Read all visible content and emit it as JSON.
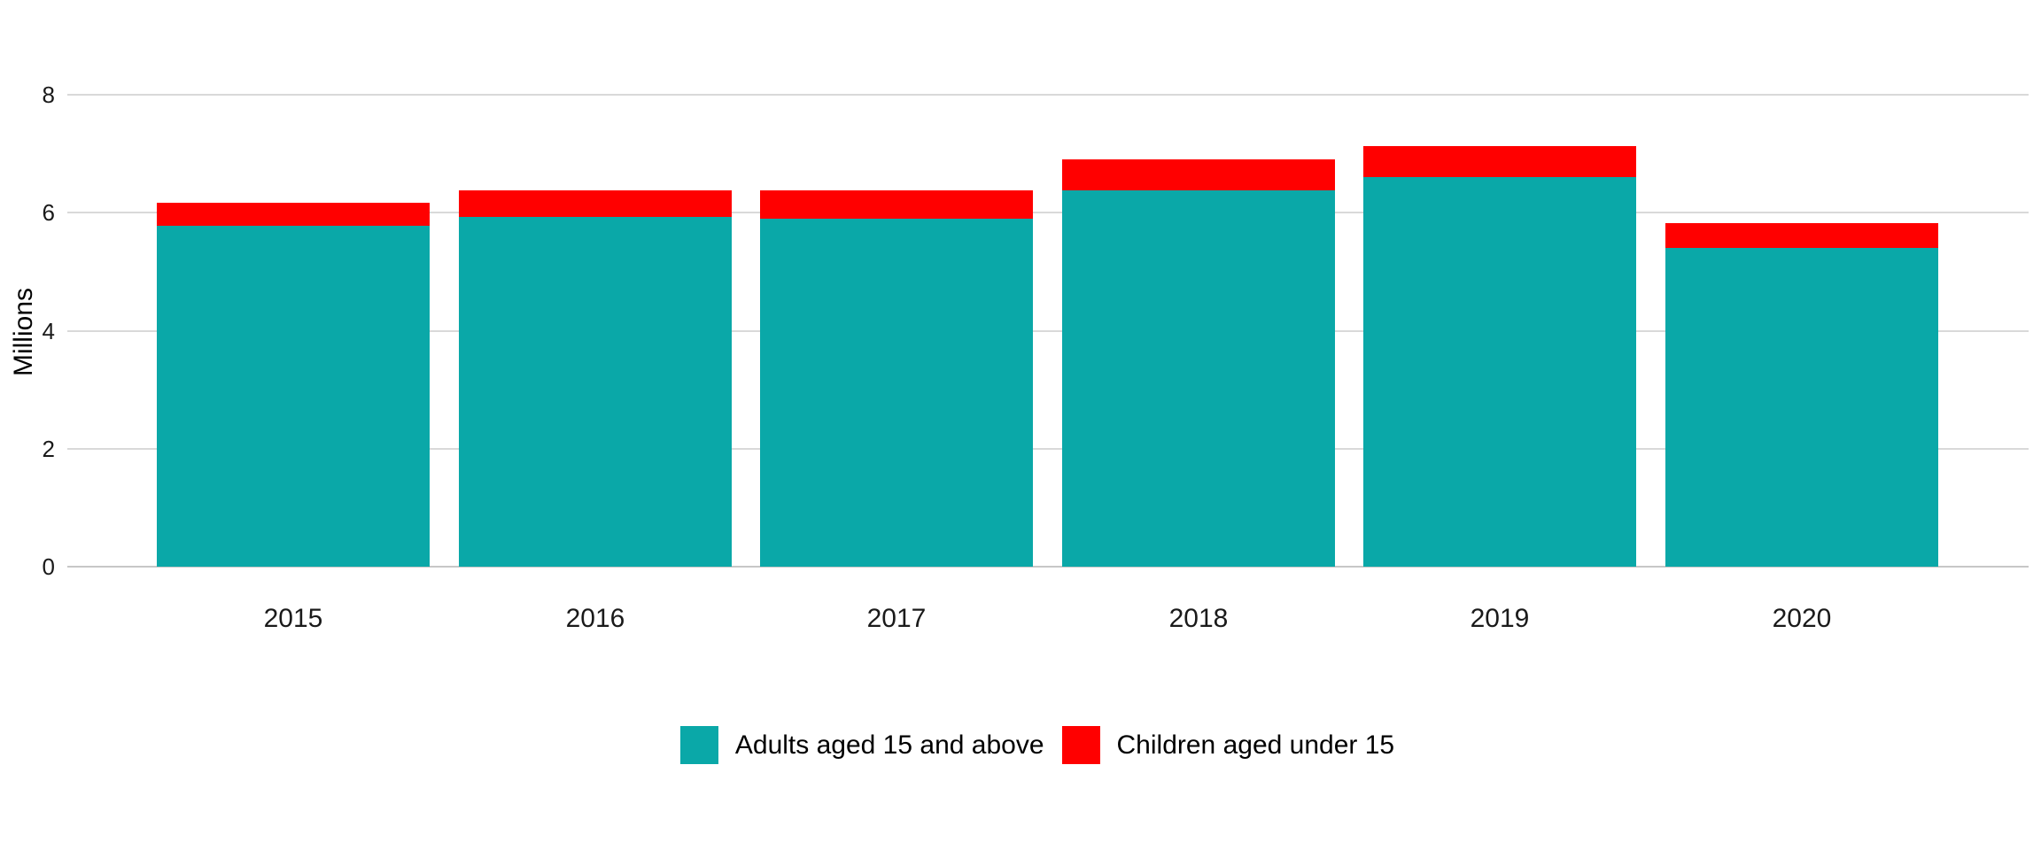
{
  "chart_data": {
    "type": "bar",
    "stacked": true,
    "title": "",
    "xlabel": "",
    "ylabel": "Millions",
    "categories": [
      "2015",
      "2016",
      "2017",
      "2018",
      "2019",
      "2020"
    ],
    "series": [
      {
        "name": "Adults aged 15 and above",
        "color": "#0aa8a8",
        "values": [
          5.78,
          5.93,
          5.9,
          6.38,
          6.61,
          5.41
        ]
      },
      {
        "name": "Children aged under 15",
        "color": "#ff0000",
        "values": [
          0.39,
          0.45,
          0.48,
          0.53,
          0.52,
          0.42
        ]
      }
    ],
    "yticks": [
      0,
      2,
      4,
      6,
      8
    ],
    "ylim": [
      0,
      8
    ],
    "grid": true,
    "legend_position": "bottom",
    "background_color": "#ffffff",
    "gridline_color": "#d9d9d9",
    "axis_text_color": "#1a1a1a"
  }
}
